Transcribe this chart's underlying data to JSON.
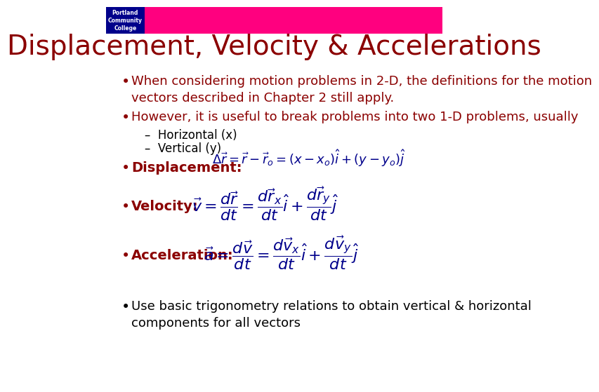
{
  "title": "Displacement, Velocity & Accelerations",
  "title_color": "#8B0000",
  "title_fontsize": 28,
  "header_bar_color": "#FF007F",
  "header_bar_height": 0.072,
  "logo_bg_color": "#00008B",
  "bg_color": "#FFFFFF",
  "text_color": "#8B0000",
  "sub_text_color": "#000000",
  "formula_color": "#00008B",
  "bullet1_line1": "When considering motion problems in 2-D, the definitions for the motion",
  "bullet1_line2": "vectors described in Chapter 2 still apply.",
  "bullet2": "However, it is useful to break problems into two 1-D problems, usually",
  "sub1": "Horizontal (x)",
  "sub2": "Vertical (y)",
  "bullet6_line1": "Use basic trigonometry relations to obtain vertical & horizontal",
  "bullet6_line2": "components for all vectors",
  "font_family": "DejaVu Sans",
  "content_fontsize": 13,
  "formula_fontsize": 13,
  "bold_label_fontsize": 14
}
